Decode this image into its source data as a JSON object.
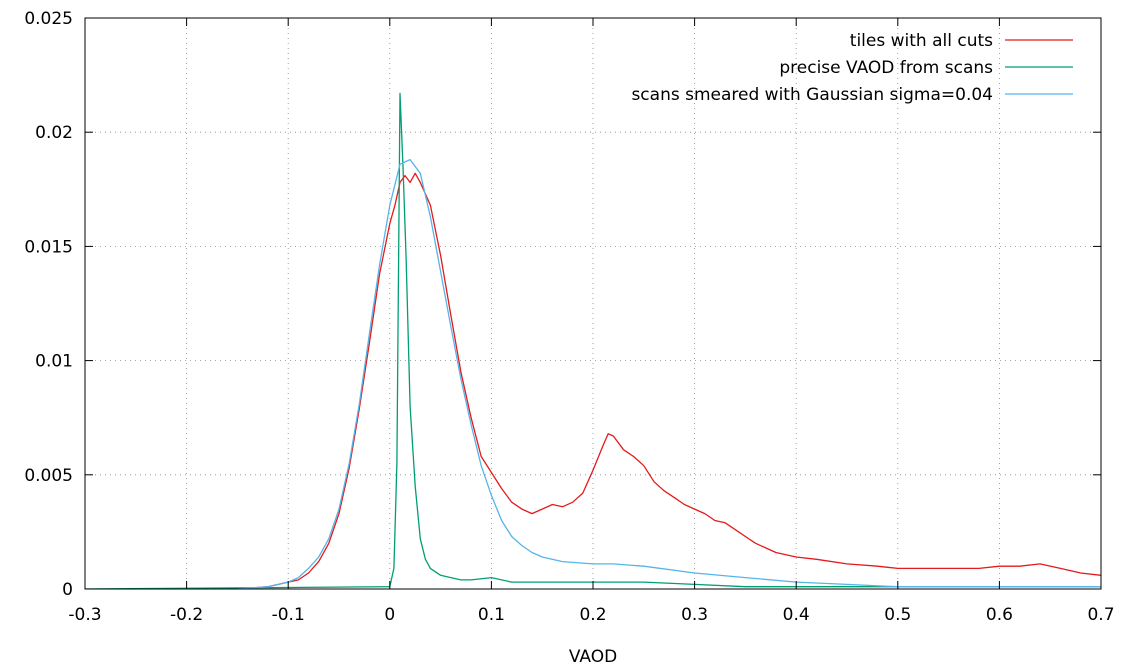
{
  "chart_data": {
    "type": "line",
    "title": "",
    "xlabel": "VAOD",
    "ylabel": "",
    "xlim": [
      -0.3,
      0.7
    ],
    "ylim": [
      0,
      0.025
    ],
    "xticks": [
      "-0.3",
      "-0.2",
      "-0.1",
      "0",
      "0.1",
      "0.2",
      "0.3",
      "0.4",
      "0.5",
      "0.6",
      "0.7"
    ],
    "yticks": [
      "0",
      "0.005",
      "0.01",
      "0.015",
      "0.02",
      "0.025"
    ],
    "grid": true,
    "legend_position": "top-right",
    "series": [
      {
        "name": "tiles with all cuts",
        "color": "#e41a1c",
        "x": [
          -0.15,
          -0.12,
          -0.1,
          -0.09,
          -0.08,
          -0.07,
          -0.06,
          -0.05,
          -0.04,
          -0.03,
          -0.02,
          -0.01,
          0.0,
          0.005,
          0.01,
          0.015,
          0.02,
          0.025,
          0.03,
          0.04,
          0.05,
          0.06,
          0.07,
          0.08,
          0.09,
          0.1,
          0.11,
          0.12,
          0.13,
          0.14,
          0.15,
          0.16,
          0.17,
          0.18,
          0.19,
          0.2,
          0.21,
          0.215,
          0.22,
          0.23,
          0.24,
          0.25,
          0.26,
          0.27,
          0.28,
          0.29,
          0.3,
          0.31,
          0.32,
          0.33,
          0.34,
          0.35,
          0.36,
          0.37,
          0.38,
          0.4,
          0.42,
          0.45,
          0.48,
          0.5,
          0.52,
          0.55,
          0.58,
          0.6,
          0.62,
          0.64,
          0.66,
          0.68,
          0.7
        ],
        "y": [
          0.0,
          0.0001,
          0.0003,
          0.0004,
          0.0007,
          0.0012,
          0.002,
          0.0033,
          0.0053,
          0.0079,
          0.0108,
          0.0138,
          0.016,
          0.0168,
          0.0178,
          0.0181,
          0.0178,
          0.0182,
          0.0178,
          0.0168,
          0.0146,
          0.012,
          0.0095,
          0.0075,
          0.0058,
          0.0051,
          0.0044,
          0.0038,
          0.0035,
          0.0033,
          0.0035,
          0.0037,
          0.0036,
          0.0038,
          0.0042,
          0.0052,
          0.0063,
          0.0068,
          0.0067,
          0.0061,
          0.0058,
          0.0054,
          0.0047,
          0.0043,
          0.004,
          0.0037,
          0.0035,
          0.0033,
          0.003,
          0.0029,
          0.0026,
          0.0023,
          0.002,
          0.0018,
          0.0016,
          0.0014,
          0.0013,
          0.0011,
          0.001,
          0.0009,
          0.0009,
          0.0009,
          0.0009,
          0.001,
          0.001,
          0.0011,
          0.0009,
          0.0007,
          0.0006
        ]
      },
      {
        "name": "precise VAOD from scans",
        "color": "#009e73",
        "x": [
          -0.3,
          0.0,
          0.004,
          0.007,
          0.01,
          0.013,
          0.016,
          0.02,
          0.025,
          0.03,
          0.035,
          0.04,
          0.05,
          0.06,
          0.07,
          0.08,
          0.1,
          0.12,
          0.15,
          0.2,
          0.25,
          0.3,
          0.35,
          0.4,
          0.5,
          0.6,
          0.7
        ],
        "y": [
          0.0,
          0.0001,
          0.0009,
          0.0055,
          0.0217,
          0.0185,
          0.0145,
          0.008,
          0.0045,
          0.0022,
          0.0013,
          0.0009,
          0.0006,
          0.0005,
          0.0004,
          0.0004,
          0.0005,
          0.0003,
          0.0003,
          0.0003,
          0.0003,
          0.0002,
          0.0001,
          0.0001,
          0.0001,
          0.0001,
          0.0001
        ]
      },
      {
        "name": "scans smeared with Gaussian sigma=0.04",
        "color": "#56b4e9",
        "x": [
          -0.15,
          -0.12,
          -0.1,
          -0.09,
          -0.08,
          -0.07,
          -0.06,
          -0.05,
          -0.04,
          -0.03,
          -0.02,
          -0.01,
          0.0,
          0.01,
          0.02,
          0.03,
          0.04,
          0.05,
          0.06,
          0.07,
          0.08,
          0.09,
          0.1,
          0.11,
          0.12,
          0.13,
          0.14,
          0.15,
          0.17,
          0.2,
          0.22,
          0.25,
          0.3,
          0.35,
          0.4,
          0.45,
          0.5,
          0.55,
          0.6,
          0.65,
          0.7
        ],
        "y": [
          0.0,
          0.0001,
          0.0003,
          0.0005,
          0.0009,
          0.0014,
          0.0022,
          0.0035,
          0.0055,
          0.0081,
          0.0112,
          0.0142,
          0.0168,
          0.0186,
          0.0188,
          0.0182,
          0.0163,
          0.0139,
          0.0115,
          0.0092,
          0.0072,
          0.0054,
          0.0041,
          0.003,
          0.0023,
          0.0019,
          0.0016,
          0.0014,
          0.0012,
          0.0011,
          0.0011,
          0.001,
          0.0007,
          0.0005,
          0.0003,
          0.0002,
          0.0001,
          0.0001,
          0.0001,
          0.0001,
          0.0001
        ]
      }
    ]
  }
}
